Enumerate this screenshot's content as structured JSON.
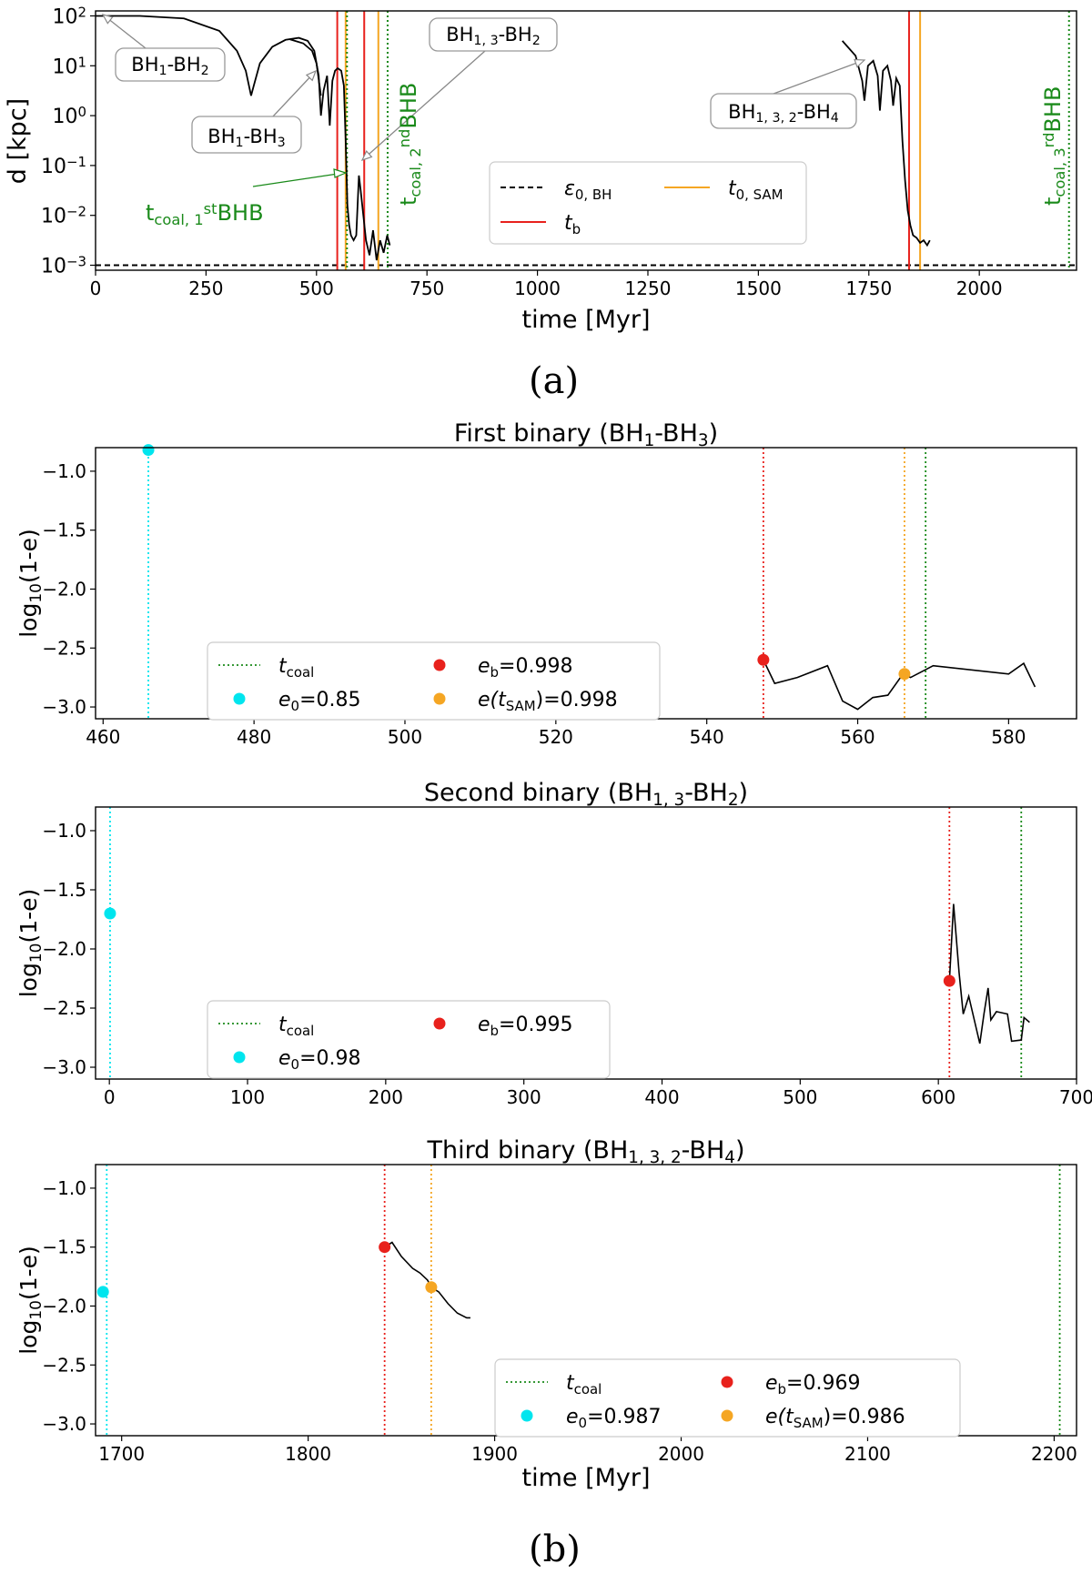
{
  "figure": {
    "label_a": "(a)",
    "label_b": "(b)"
  },
  "chart_data": [
    {
      "id": "a",
      "type": "line",
      "title": "",
      "xlabel": "time [Myr]",
      "ylabel": "d [kpc]",
      "xlim": [
        0,
        2220
      ],
      "ylim_log10": [
        -3.1,
        2.1
      ],
      "yscale": "log",
      "xticks": [
        0,
        250,
        500,
        750,
        1000,
        1250,
        1500,
        1750,
        2000
      ],
      "yticks_exp": [
        -3,
        -2,
        -1,
        0,
        1,
        2
      ],
      "curves": [
        {
          "name": "BH1-BH2 / BH1-BH3 / BH1,3-BH2 separation",
          "points": [
            [
              0,
              2.0
            ],
            [
              100,
              2.0
            ],
            [
              200,
              1.95
            ],
            [
              280,
              1.7
            ],
            [
              320,
              1.3
            ],
            [
              340,
              0.9
            ],
            [
              352,
              0.4
            ],
            [
              358,
              0.6
            ],
            [
              372,
              1.05
            ],
            [
              400,
              1.38
            ],
            [
              430,
              1.52
            ],
            [
              460,
              1.56
            ],
            [
              480,
              1.5
            ],
            [
              495,
              1.3
            ],
            [
              505,
              0.8
            ],
            [
              510,
              0.0
            ],
            [
              516,
              0.5
            ],
            [
              524,
              0.8
            ],
            [
              530,
              -0.2
            ],
            [
              536,
              0.7
            ],
            [
              542,
              0.9
            ],
            [
              548,
              0.95
            ],
            [
              556,
              0.9
            ],
            [
              562,
              0.6
            ],
            [
              566,
              -0.5
            ],
            [
              570,
              -1.8
            ],
            [
              574,
              -2.2
            ],
            [
              578,
              -2.4
            ],
            [
              584,
              -2.5
            ],
            [
              590,
              -2.4
            ],
            [
              596,
              -1.2
            ],
            [
              600,
              -1.5
            ],
            [
              606,
              -2.0
            ],
            [
              612,
              -2.5
            ],
            [
              620,
              -2.8
            ],
            [
              628,
              -2.3
            ],
            [
              636,
              -2.9
            ],
            [
              644,
              -2.5
            ],
            [
              652,
              -2.75
            ],
            [
              660,
              -2.4
            ],
            [
              666,
              -2.6
            ]
          ]
        },
        {
          "name": "branch BH1-BH2 second orbit",
          "points": [
            [
              440,
              1.53
            ],
            [
              470,
              1.45
            ],
            [
              490,
              1.3
            ],
            [
              500,
              1.05
            ],
            [
              510,
              0.4
            ]
          ]
        },
        {
          "name": "BH1,3,2-BH4 separation",
          "points": [
            [
              1690,
              1.5
            ],
            [
              1720,
              1.2
            ],
            [
              1735,
              0.7
            ],
            [
              1740,
              0.3
            ],
            [
              1748,
              1.0
            ],
            [
              1760,
              1.1
            ],
            [
              1770,
              0.8
            ],
            [
              1775,
              0.1
            ],
            [
              1782,
              0.9
            ],
            [
              1792,
              1.0
            ],
            [
              1800,
              0.7
            ],
            [
              1805,
              0.2
            ],
            [
              1812,
              0.75
            ],
            [
              1820,
              0.6
            ],
            [
              1826,
              -0.5
            ],
            [
              1832,
              -1.3
            ],
            [
              1838,
              -1.9
            ],
            [
              1844,
              -2.2
            ],
            [
              1850,
              -2.4
            ],
            [
              1858,
              -2.45
            ],
            [
              1866,
              -2.55
            ],
            [
              1874,
              -2.5
            ],
            [
              1882,
              -2.6
            ],
            [
              1888,
              -2.5
            ]
          ]
        }
      ],
      "vlines": [
        {
          "type": "t_b",
          "color": "#e8211c",
          "x": [
            547,
            608,
            1841
          ]
        },
        {
          "type": "t_0,SAM",
          "color": "#f5a623",
          "x": [
            566,
            640,
            1866
          ]
        },
        {
          "type": "t_coal",
          "color": "#1a8a1a",
          "x": [
            569,
            661,
            2203
          ]
        }
      ],
      "hline": {
        "name": "epsilon_0,BH",
        "y_log10": -3,
        "value": 0.001
      },
      "legend": {
        "position": "center-right",
        "epsilon": {
          "main": "ε",
          "sub": "0, BH"
        },
        "t0sam": {
          "main": "t",
          "sub": "0, SAM"
        },
        "tb": {
          "main": "t",
          "sub": "b"
        }
      },
      "annotations": {
        "bh12": {
          "pre": "BH",
          "s1": "1",
          "mid": "-BH",
          "s2": "2",
          "end": ""
        },
        "bh13": {
          "pre": "BH",
          "s1": "1",
          "mid": "-BH",
          "s2": "3",
          "end": ""
        },
        "bh132": {
          "pre": "BH",
          "s1": "1, 3",
          "mid": "-BH",
          "s2": "2",
          "end": ""
        },
        "bh1324": {
          "pre": "BH",
          "s1": "1, 3, 2",
          "mid": "-BH",
          "s2": "4",
          "end": ""
        },
        "tcoal1": {
          "t": "t",
          "sub": "coal, 1",
          "sup": "st",
          "end": "BHB"
        },
        "tcoal2": {
          "t": "t",
          "sub": "coal, 2",
          "sup": "nd",
          "end": "BHB"
        },
        "tcoal3": {
          "t": "t",
          "sub": "coal, 3",
          "sup": "rd",
          "end": "BHB"
        }
      }
    },
    {
      "id": "b1",
      "type": "line",
      "title": {
        "pre": "First binary (BH",
        "s1": "1",
        "mid": "-BH",
        "s2": "3",
        "end": ")"
      },
      "xlabel": "",
      "ylabel": {
        "pre": "log",
        "sub": "10",
        "end": "(1-e)"
      },
      "xlim": [
        459,
        589
      ],
      "ylim": [
        -3.1,
        -0.8
      ],
      "xticks": [
        460,
        480,
        500,
        520,
        540,
        560,
        580
      ],
      "yticks": [
        -3.0,
        -2.5,
        -2.0,
        -1.5,
        -1.0
      ],
      "ytick_labels": [
        "−3.0",
        "−2.5",
        "−2.0",
        "−1.5",
        "−1.0"
      ],
      "series": [
        {
          "name": "log10(1-e)",
          "points": [
            [
              547.5,
              -2.6
            ],
            [
              549,
              -2.8
            ],
            [
              552,
              -2.75
            ],
            [
              556,
              -2.65
            ],
            [
              558,
              -2.95
            ],
            [
              560,
              -3.02
            ],
            [
              562,
              -2.92
            ],
            [
              564,
              -2.9
            ],
            [
              566,
              -2.72
            ],
            [
              567,
              -2.75
            ],
            [
              570,
              -2.65
            ],
            [
              580,
              -2.72
            ],
            [
              582,
              -2.63
            ],
            [
              583.5,
              -2.83
            ]
          ]
        }
      ],
      "vlines": [
        {
          "name": "t_0",
          "x": 466,
          "color": "#00e5ee"
        },
        {
          "name": "t_b",
          "x": 547.5,
          "color": "#e8211c"
        },
        {
          "name": "t_SAM",
          "x": 566.2,
          "color": "#f5a623"
        },
        {
          "name": "t_coal",
          "x": 569,
          "color": "#1a8a1a"
        }
      ],
      "points": [
        {
          "name": "e0",
          "x": 466,
          "y": -0.82,
          "color": "#00e5ee"
        },
        {
          "name": "eb",
          "x": 547.5,
          "y": -2.6,
          "color": "#e8211c"
        },
        {
          "name": "eSAM",
          "x": 566.2,
          "y": -2.72,
          "color": "#f5a623"
        }
      ],
      "legend": {
        "position": "lower-left",
        "tcoal": {
          "main": "t",
          "sub": "coal",
          "end": ""
        },
        "e0": {
          "main": "e",
          "sub": "0",
          "end": "=0.85"
        },
        "eb": {
          "main": "e",
          "sub": "b",
          "end": "=0.998"
        },
        "esam": {
          "main": "e(t",
          "sub": "SAM",
          "end": ")=0.998"
        }
      }
    },
    {
      "id": "b2",
      "type": "line",
      "title": {
        "pre": "Second binary (BH",
        "s1": "1, 3",
        "mid": "-BH",
        "s2": "2",
        "end": ")"
      },
      "xlabel": "",
      "ylabel": {
        "pre": "log",
        "sub": "10",
        "end": "(1-e)"
      },
      "xlim": [
        -10,
        700
      ],
      "ylim": [
        -3.1,
        -0.8
      ],
      "xticks": [
        0,
        100,
        200,
        300,
        400,
        500,
        600,
        700
      ],
      "yticks": [
        -3.0,
        -2.5,
        -2.0,
        -1.5,
        -1.0
      ],
      "ytick_labels": [
        "−3.0",
        "−2.5",
        "−2.0",
        "−1.5",
        "−1.0"
      ],
      "series": [
        {
          "name": "log10(1-e)",
          "points": [
            [
              608,
              -2.27
            ],
            [
              611,
              -1.62
            ],
            [
              615,
              -2.2
            ],
            [
              618,
              -2.55
            ],
            [
              622,
              -2.4
            ],
            [
              627,
              -2.65
            ],
            [
              630,
              -2.8
            ],
            [
              633,
              -2.55
            ],
            [
              636,
              -2.33
            ],
            [
              638,
              -2.6
            ],
            [
              642,
              -2.53
            ],
            [
              650,
              -2.55
            ],
            [
              653,
              -2.78
            ],
            [
              660,
              -2.77
            ],
            [
              662,
              -2.58
            ],
            [
              666,
              -2.62
            ]
          ]
        }
      ],
      "vlines": [
        {
          "name": "t_0",
          "x": 0.5,
          "color": "#00e5ee"
        },
        {
          "name": "t_b",
          "x": 608,
          "color": "#e8211c"
        },
        {
          "name": "t_coal",
          "x": 660,
          "color": "#1a8a1a"
        }
      ],
      "points": [
        {
          "name": "e0",
          "x": 0.5,
          "y": -1.7,
          "color": "#00e5ee"
        },
        {
          "name": "eb",
          "x": 608,
          "y": -2.27,
          "color": "#e8211c"
        }
      ],
      "legend": {
        "position": "lower-left",
        "tcoal": {
          "main": "t",
          "sub": "coal",
          "end": ""
        },
        "e0": {
          "main": "e",
          "sub": "0",
          "end": "=0.98"
        },
        "eb": {
          "main": "e",
          "sub": "b",
          "end": "=0.995"
        }
      }
    },
    {
      "id": "b3",
      "type": "line",
      "title": {
        "pre": "Third binary (BH",
        "s1": "1, 3, 2",
        "mid": "-BH",
        "s2": "4",
        "end": ")"
      },
      "xlabel": "time [Myr]",
      "ylabel": {
        "pre": "log",
        "sub": "10",
        "end": "(1-e)"
      },
      "xlim": [
        1686,
        2212
      ],
      "ylim": [
        -3.1,
        -0.8
      ],
      "xticks": [
        1700,
        1800,
        1900,
        2000,
        2100,
        2200
      ],
      "yticks": [
        -3.0,
        -2.5,
        -2.0,
        -1.5,
        -1.0
      ],
      "ytick_labels": [
        "−3.0",
        "−2.5",
        "−2.0",
        "−1.5",
        "−1.0"
      ],
      "series": [
        {
          "name": "log10(1-e)",
          "points": [
            [
              1841,
              -1.5
            ],
            [
              1845,
              -1.46
            ],
            [
              1850,
              -1.58
            ],
            [
              1856,
              -1.68
            ],
            [
              1860,
              -1.72
            ],
            [
              1864,
              -1.78
            ],
            [
              1866,
              -1.84
            ],
            [
              1870,
              -1.88
            ],
            [
              1875,
              -1.98
            ],
            [
              1880,
              -2.06
            ],
            [
              1885,
              -2.1
            ],
            [
              1887,
              -2.1
            ]
          ]
        }
      ],
      "vlines": [
        {
          "name": "t_0",
          "x": 1692,
          "color": "#00e5ee"
        },
        {
          "name": "t_b",
          "x": 1841,
          "color": "#e8211c"
        },
        {
          "name": "t_SAM",
          "x": 1866,
          "color": "#f5a623"
        },
        {
          "name": "t_coal",
          "x": 2203,
          "color": "#1a8a1a"
        }
      ],
      "points": [
        {
          "name": "e0",
          "x": 1690,
          "y": -1.88,
          "color": "#00e5ee"
        },
        {
          "name": "eb",
          "x": 1841,
          "y": -1.5,
          "color": "#e8211c"
        },
        {
          "name": "eSAM",
          "x": 1866,
          "y": -1.84,
          "color": "#f5a623"
        }
      ],
      "legend": {
        "position": "lower-center",
        "tcoal": {
          "main": "t",
          "sub": "coal",
          "end": ""
        },
        "e0": {
          "main": "e",
          "sub": "0",
          "end": "=0.987"
        },
        "eb": {
          "main": "e",
          "sub": "b",
          "end": "=0.969"
        },
        "esam": {
          "main": "e(t",
          "sub": "SAM",
          "end": ")=0.986"
        }
      }
    }
  ]
}
